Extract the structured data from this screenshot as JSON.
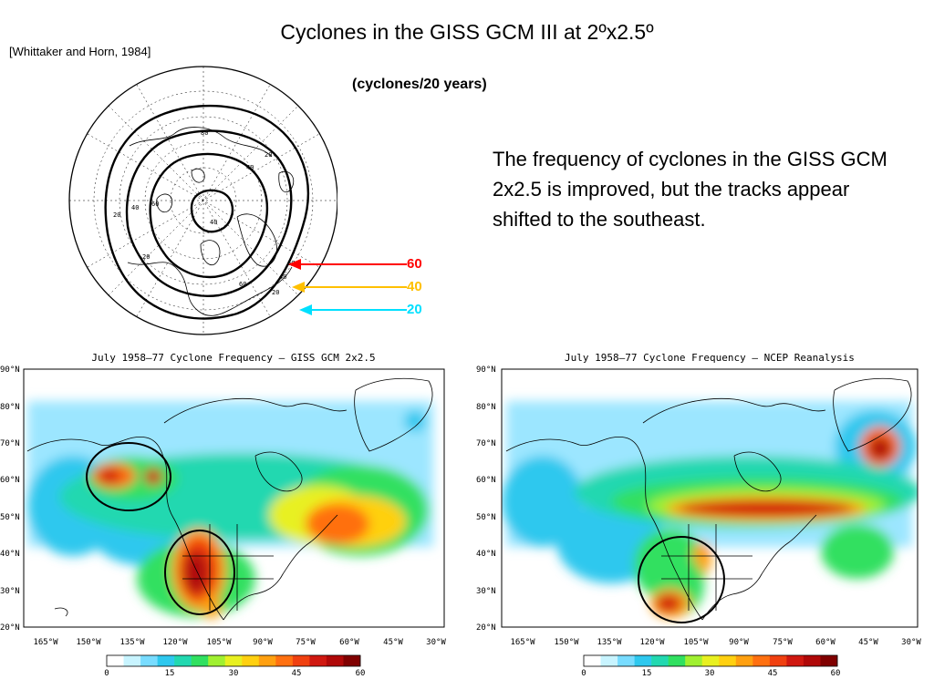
{
  "slide": {
    "title": "Cyclones in the GISS GCM III at 2ºx2.5º",
    "citation": "[Whittaker and Horn, 1984]",
    "units": "(cyclones/20 years)",
    "caption": "The frequency of cyclones in the GISS GCM 2x2.5 is improved, but the tracks appear shifted to the southeast."
  },
  "polar_map": {
    "contour_labels": [
      "20",
      "40",
      "60",
      "80",
      "20",
      "40",
      "60",
      "40",
      "20",
      "60",
      "40",
      "20"
    ],
    "arrows": [
      {
        "label": "60",
        "color": "#ff0000"
      },
      {
        "label": "40",
        "color": "#ffc000"
      },
      {
        "label": "20",
        "color": "#00e0ff"
      }
    ]
  },
  "panels": [
    {
      "title": "July 1958–77 Cyclone Frequency – GISS GCM 2x2.5"
    },
    {
      "title": "July 1958–77 Cyclone Frequency – NCEP Reanalysis"
    }
  ],
  "axes": {
    "lat_labels": [
      "90°N",
      "80°N",
      "70°N",
      "60°N",
      "50°N",
      "40°N",
      "30°N",
      "20°N"
    ],
    "lon_labels": [
      "165°W",
      "150°W",
      "135°W",
      "120°W",
      "105°W",
      "90°W",
      "75°W",
      "60°W",
      "45°W",
      "30°W"
    ]
  },
  "colorbar": {
    "labels": [
      "0",
      "15",
      "30",
      "45",
      "60"
    ],
    "colors": [
      "#ffffff",
      "#c8f4ff",
      "#78dcff",
      "#2ec8ee",
      "#22d8b0",
      "#30e060",
      "#a0f030",
      "#e8f020",
      "#ffd010",
      "#ffa010",
      "#ff7010",
      "#f04010",
      "#d01810",
      "#b00808",
      "#800000"
    ]
  }
}
